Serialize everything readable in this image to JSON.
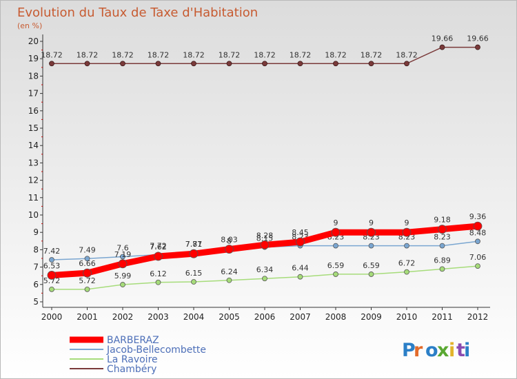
{
  "chart_data": {
    "type": "line",
    "title": "Evolution du Taux de Taxe d'Habitation",
    "subtitle": "(en %)",
    "x": [
      "2000",
      "2001",
      "2002",
      "2003",
      "2004",
      "2005",
      "2006",
      "2007",
      "2008",
      "2009",
      "2010",
      "2011",
      "2012"
    ],
    "yticks": [
      "5",
      "6",
      "7",
      "8",
      "9",
      "10",
      "11",
      "12",
      "13",
      "14",
      "15",
      "16",
      "17",
      "18",
      "19",
      "20"
    ],
    "ylim": [
      5,
      20
    ],
    "grid": false,
    "legend_position": "bottom-left",
    "series": [
      {
        "name": "BARBERAZ",
        "color": "#ff0000",
        "values": [
          6.53,
          6.66,
          7.19,
          7.62,
          7.77,
          8.03,
          8.28,
          8.45,
          9,
          9,
          9,
          9.18,
          9.36
        ],
        "labels": [
          "6.53",
          "6.66",
          "7.19",
          "7.62",
          "7.77",
          "8.03",
          "8.28",
          "8.45",
          "9",
          "9",
          "9",
          "9.18",
          "9.36"
        ]
      },
      {
        "name": "Jacob-Bellecombette",
        "color": "#7aa6d1",
        "values": [
          7.42,
          7.49,
          7.6,
          7.72,
          7.81,
          8,
          8.15,
          8.23,
          8.23,
          8.23,
          8.23,
          8.23,
          8.48
        ],
        "labels": [
          "7.42",
          "7.49",
          "7.6",
          "7.72",
          "7.81",
          "8",
          "8.15",
          "8.23",
          "8.23",
          "8.23",
          "8.23",
          "8.23",
          "8.48"
        ]
      },
      {
        "name": "La Ravoire",
        "color": "#a6dc7a",
        "values": [
          5.72,
          5.72,
          5.99,
          6.12,
          6.15,
          6.24,
          6.34,
          6.44,
          6.59,
          6.59,
          6.72,
          6.89,
          7.06
        ],
        "labels": [
          "5.72",
          "5.72",
          "5.99",
          "6.12",
          "6.15",
          "6.24",
          "6.34",
          "6.44",
          "6.59",
          "6.59",
          "6.72",
          "6.89",
          "7.06"
        ]
      },
      {
        "name": "Chambéry",
        "color": "#7a3a3a",
        "values": [
          18.72,
          18.72,
          18.72,
          18.72,
          18.72,
          18.72,
          18.72,
          18.72,
          18.72,
          18.72,
          18.72,
          19.66,
          19.66
        ],
        "labels": [
          "18.72",
          "18.72",
          "18.72",
          "18.72",
          "18.72",
          "18.72",
          "18.72",
          "18.72",
          "18.72",
          "18.72",
          "18.72",
          "19.66",
          "19.66"
        ]
      }
    ]
  },
  "logo": {
    "text": "Proxiti"
  },
  "colors": {
    "title": "#c75b31",
    "legend_text": "#4d6fb8",
    "axis": "#333333"
  }
}
